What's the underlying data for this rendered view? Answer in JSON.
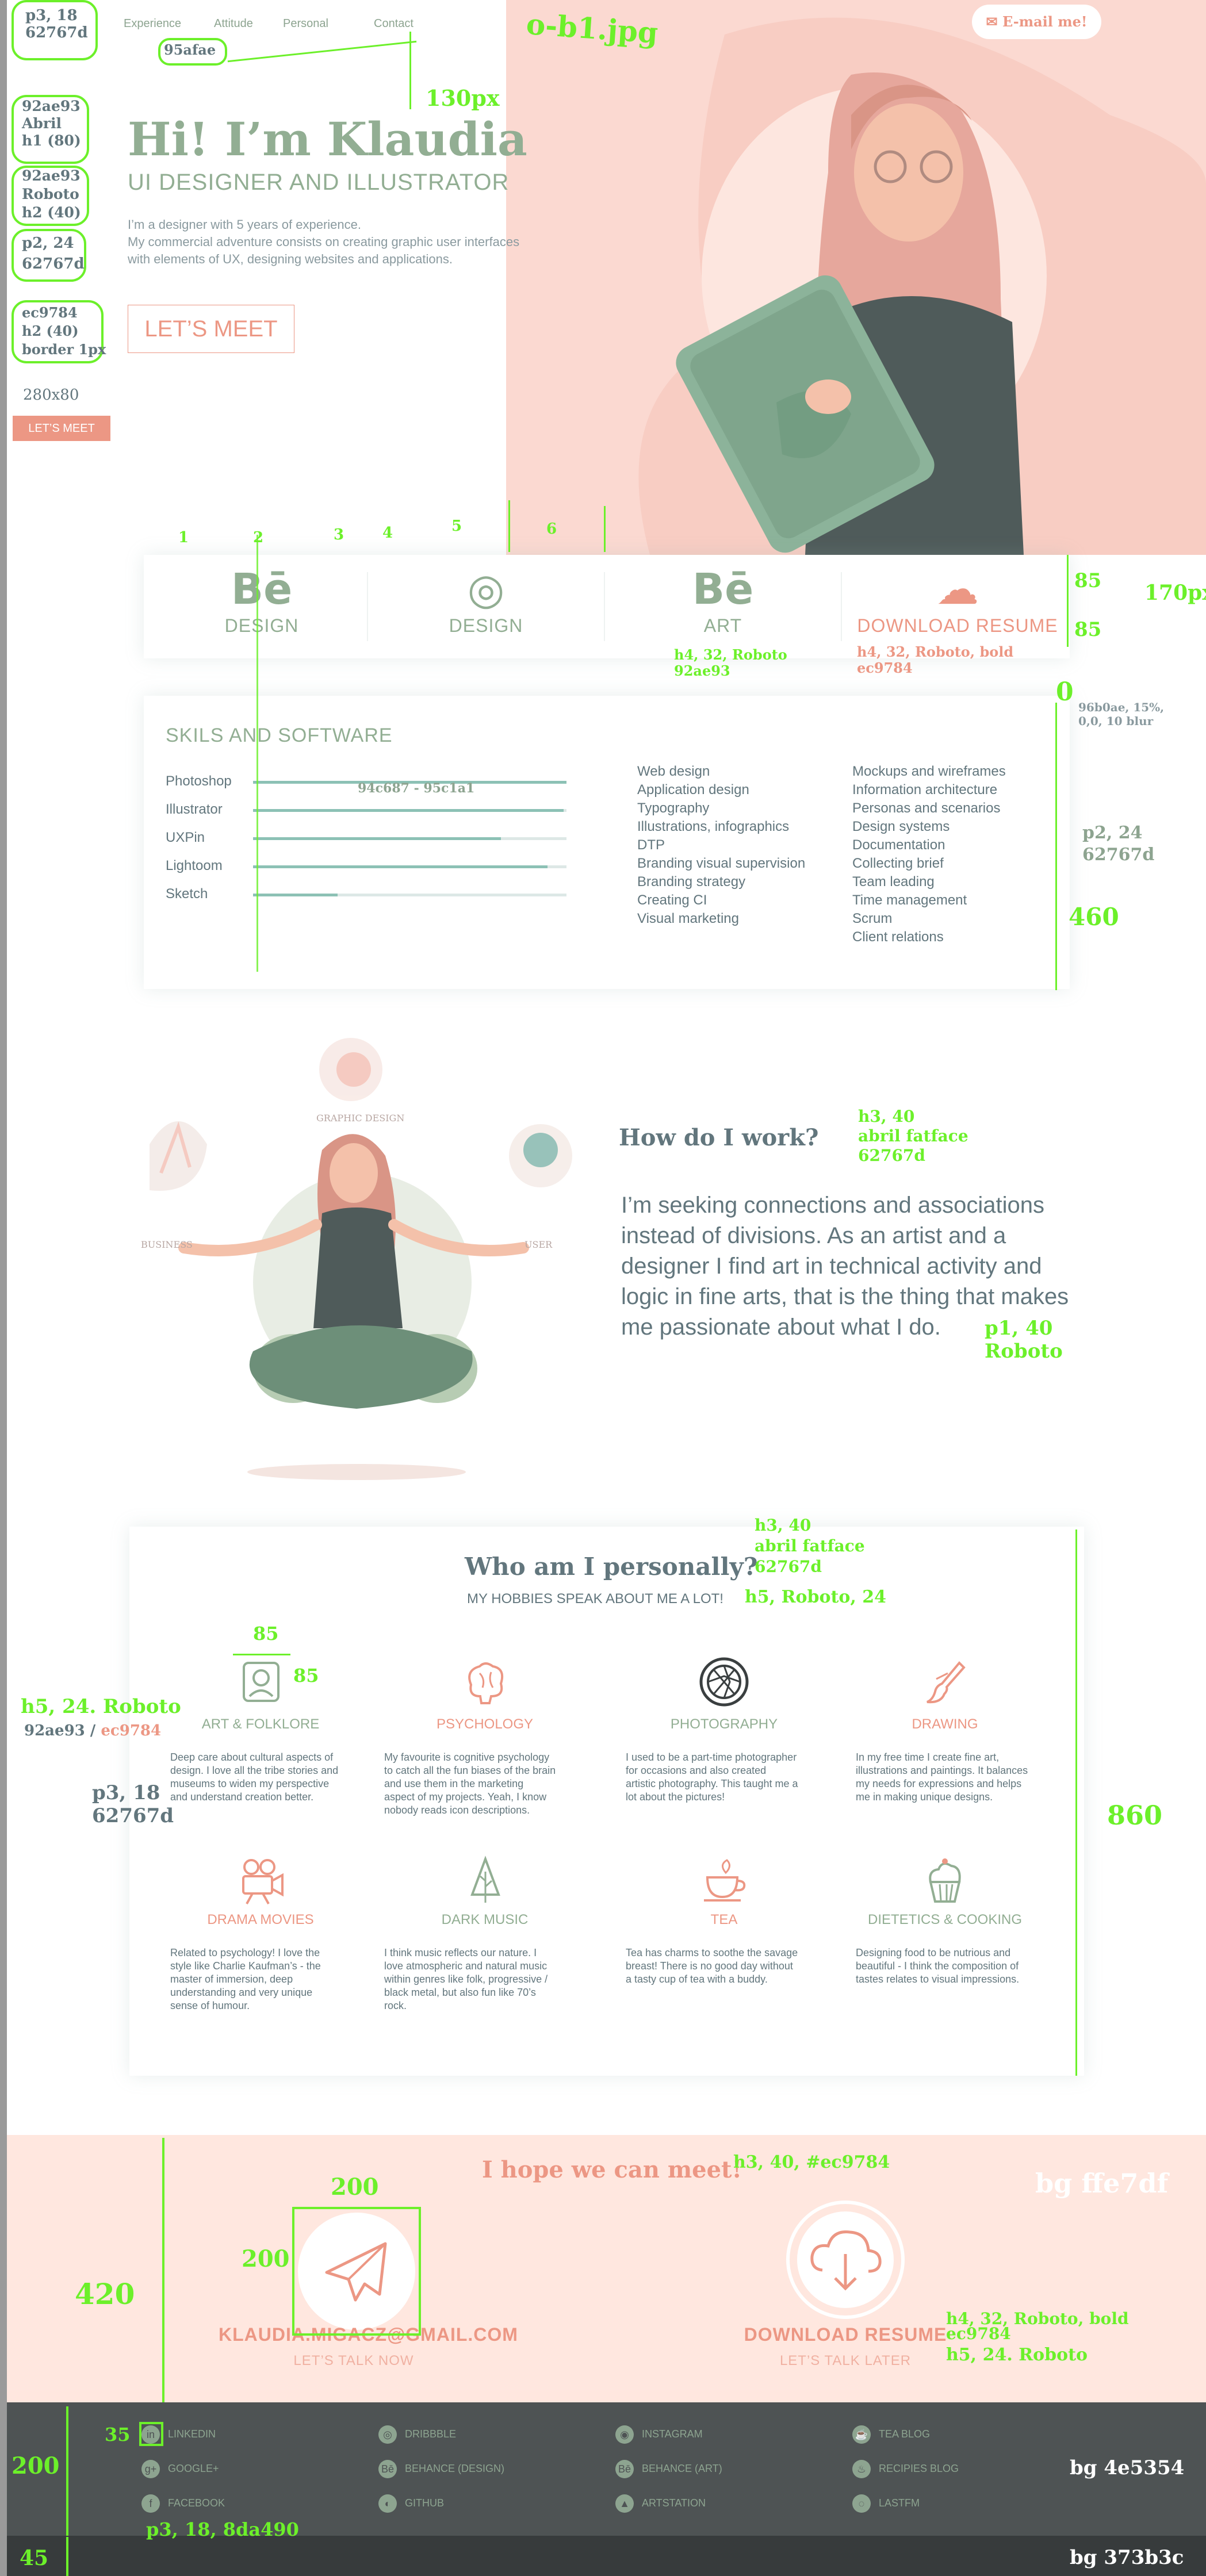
{
  "nav": {
    "items": [
      "Experience",
      "Attitude",
      "Personal",
      "Contact"
    ],
    "email_label": "✉ E-mail me!"
  },
  "hero": {
    "title": "Hi! I’m Klaudia",
    "subtitle": "UI DESIGNER AND ILLUSTRATOR",
    "desc_1": "I’m a designer with 5 years of experience.",
    "desc_2": "My commercial adventure consists on creating graphic user interfaces",
    "desc_3": "with elements of UX, designing websites and applications.",
    "cta": "LET’S MEET",
    "small_size_label": "280x80",
    "small_cta": "LET’S MEET"
  },
  "services": [
    {
      "icon": "behance-icon",
      "glyph": "Bē",
      "label": "DESIGN"
    },
    {
      "icon": "dribbble-icon",
      "glyph": "◎",
      "label": "DESIGN"
    },
    {
      "icon": "behance-icon",
      "glyph": "Bē",
      "label": "ART"
    },
    {
      "icon": "cloud-download-icon",
      "glyph": "☁",
      "label": "DOWNLOAD RESUME"
    }
  ],
  "skills": {
    "title": "SKILS AND SOFTWARE",
    "software": [
      {
        "name": "Photoshop",
        "level": 1.0
      },
      {
        "name": "Illustrator",
        "level": 0.99
      },
      {
        "name": "UXPin",
        "level": 0.79
      },
      {
        "name": "Lightoom",
        "level": 0.94
      },
      {
        "name": "Sketch",
        "level": 0.27
      }
    ],
    "col1": [
      "Web design",
      "Application design",
      "Typography",
      "Illustrations, infographics",
      "DTP",
      "Branding visual supervision",
      "Branding strategy",
      "Creating CI",
      "Visual marketing"
    ],
    "col2": [
      "Mockups and wireframes",
      "Information architecture",
      "Personas and scenarios",
      "Design systems",
      "Documentation",
      "Collecting brief",
      "Team leading",
      "Time management",
      "Scrum",
      "Client relations"
    ]
  },
  "work": {
    "title": "How do I work?",
    "text": "I’m seeking connections and associations instead of divisions. As an artist and a designer I find art in technical activity and logic in fine arts, that is the thing that makes me passionate about what I do.",
    "tag_graphic": "GRAPHIC DESIGN",
    "tag_business": "BUSINESS",
    "tag_user": "USER"
  },
  "personal": {
    "title": "Who am I personally?",
    "subtitle": "MY HOBBIES SPEAK ABOUT ME A LOT!",
    "hobbies": [
      {
        "icon": "folklore-icon",
        "title": "ART & FOLKLORE",
        "color": "#92ae93",
        "desc": "Deep care about cultural aspects of design. I love all the tribe stories and museums to widen my perspective and understand creation better."
      },
      {
        "icon": "brain-icon",
        "title": "PSYCHOLOGY",
        "color": "#ec9784",
        "desc": "My favourite is cognitive psychology to catch all the fun biases of the brain and use them in the marketing aspect of my projects. Yeah, I know nobody reads icon descriptions."
      },
      {
        "icon": "camera-aperture-icon",
        "title": "PHOTOGRAPHY",
        "color": "#92ae93",
        "desc": "I used to be a part-time photographer for occasions and also created artistic photography. This taught me a lot about the pictures!"
      },
      {
        "icon": "paintbrush-icon",
        "title": "DRAWING",
        "color": "#ec9784",
        "desc": "In my free time I create fine art, illustrations and paintings. It balances my needs for expressions and helps me in making unique designs."
      },
      {
        "icon": "movie-camera-icon",
        "title": "DRAMA MOVIES",
        "color": "#ec9784",
        "desc": "Related to psychology! I love the style like Charlie Kaufman’s - the master of immersion, deep understanding and very unique sense of humour."
      },
      {
        "icon": "tree-icon",
        "title": "DARK MUSIC",
        "color": "#92ae93",
        "desc": "I think music reflects our nature. I love atmospheric and natural music within genres like folk, progressive / black metal, but also fun like 70’s rock."
      },
      {
        "icon": "tea-cup-icon",
        "title": "TEA",
        "color": "#ec9784",
        "desc": "Tea has charms to soothe the savage breast! There is no good day without a tasty cup of tea with a buddy."
      },
      {
        "icon": "cupcake-icon",
        "title": "DIETETICS & COOKING",
        "color": "#92ae93",
        "desc": "Designing food to be nutrious and beautiful - I think the composition of tastes relates to visual impressions."
      }
    ]
  },
  "contact": {
    "title": "I hope we can meet!",
    "email": "KLAUDIA.MIGACZ@GMAIL.COM",
    "email_sub": "LET’S TALK NOW",
    "resume": "DOWNLOAD RESUME",
    "resume_sub": "LET’S TALK LATER"
  },
  "footer": {
    "links": [
      {
        "icon": "linkedin-icon",
        "glyph": "in",
        "label": "LINKEDIN"
      },
      {
        "icon": "dribbble-icon",
        "glyph": "◎",
        "label": "DRIBBBLE"
      },
      {
        "icon": "instagram-icon",
        "glyph": "◉",
        "label": "INSTAGRAM"
      },
      {
        "icon": "tea-icon",
        "glyph": "☕",
        "label": "TEA BLOG"
      },
      {
        "icon": "google-plus-icon",
        "glyph": "g+",
        "label": "GOOGLE+"
      },
      {
        "icon": "behance-icon",
        "glyph": "Bē",
        "label": "BEHANCE (DESIGN)"
      },
      {
        "icon": "behance-icon",
        "glyph": "Bē",
        "label": "BEHANCE (ART)"
      },
      {
        "icon": "recipes-icon",
        "glyph": "♨",
        "label": "RECIPIES BLOG"
      },
      {
        "icon": "facebook-icon",
        "glyph": "f",
        "label": "FACEBOOK"
      },
      {
        "icon": "github-icon",
        "glyph": "◐",
        "label": "GITHUB"
      },
      {
        "icon": "artstation-icon",
        "glyph": "▲",
        "label": "ARTSTATION"
      },
      {
        "icon": "lastfm-icon",
        "glyph": "◌",
        "label": "LASTFM"
      }
    ]
  },
  "annotations": {
    "file": "o-b1.jpg",
    "nav_spec": "p3, 18\n62767d",
    "nav_color": "95afae",
    "gap_130": "130px",
    "h1_spec": "92ae93\nAbril\nh1 (80)",
    "h2_spec": "92ae93\nRoboto\nh2 (40)",
    "p2_spec": "p2, 24\n62767d",
    "btn_spec": "ec9784\nh2 (40)\nborder 1px",
    "h4_spec": "h4, 32, Roboto\n92ae93",
    "h4_bold_spec": "h4, 32, Roboto, bold\nec9784",
    "h85a": "85",
    "h85b": "85",
    "h170": "170px",
    "card_radius": "0",
    "shadow_spec": "96b0ae, 15%,\n0,0, 10 blur",
    "bar_spec": "94c687 - 95c1a1",
    "p2_spec_b": "p2, 24\n62767d",
    "h460": "460",
    "h3_spec": "h3, 40\nabril fatface\n62767d",
    "p1_spec": "p1, 40\nRoboto",
    "h3_spec_b": "h3, 40\nabril fatface\n62767d",
    "h5_spec": "h5, Roboto, 24",
    "icon_85a": "85",
    "icon_85b": "85",
    "h5_spec_b": "h5, 24. Roboto",
    "h5_colors_a": "92ae93 / ",
    "h5_colors_b": "ec9784",
    "p3_spec": "p3, 18\n62767d",
    "h860": "860",
    "h3_contact_spec": "h3, 40, #ec9784",
    "bg_pink": "bg ffe7df",
    "box_200a": "200",
    "box_200b": "200",
    "h420": "420",
    "h4_contact_spec": "h4, 32, Roboto, bold\nec9784",
    "h5_contact_spec": "h5, 24. Roboto",
    "h35": "35",
    "h200": "200",
    "h45": "45",
    "p3_footer_spec": "p3, 18, 8da490",
    "bg_dark": "bg 4e5354",
    "bg_darker": "bg 373b3c",
    "ruler": [
      "1",
      "2",
      "3",
      "4",
      "5",
      "6"
    ]
  },
  "colors": {
    "green": "#92ae93",
    "pink": "#ec9784",
    "text": "#62767d",
    "footer": "#4e5354",
    "footer_bottom": "#373b3c",
    "contact_bg": "#ffe7df",
    "annotation": "#6cf02a"
  }
}
